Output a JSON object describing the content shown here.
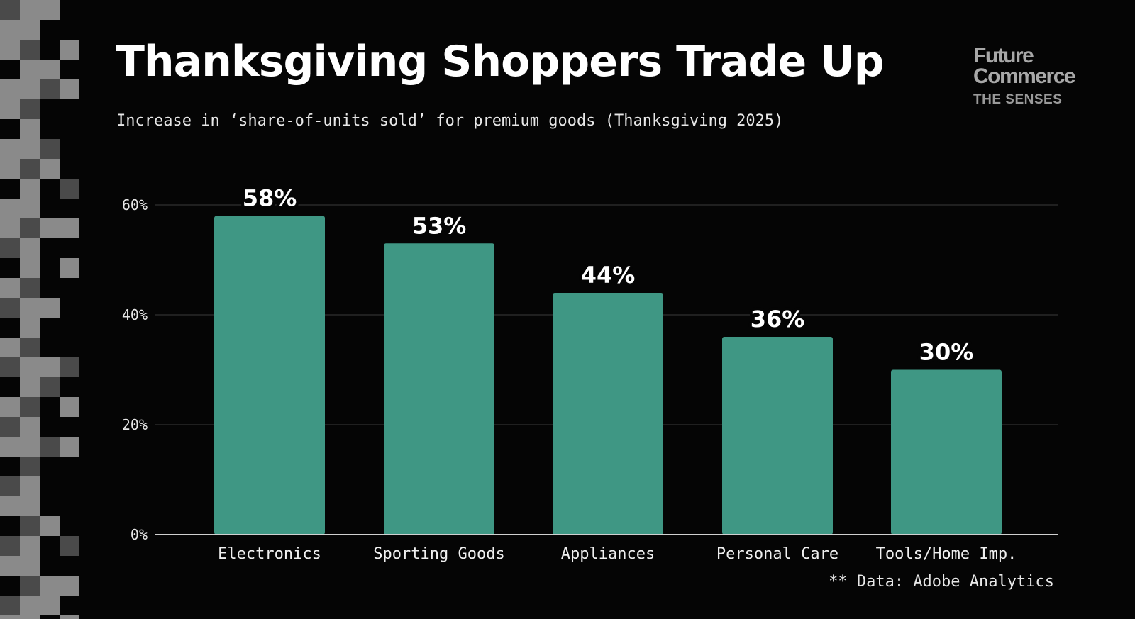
{
  "header": {
    "title": "Thanksgiving Shoppers Trade Up",
    "subtitle": "Increase in ‘share-of-units sold’ for premium goods (Thanksgiving 2025)"
  },
  "brand": {
    "line1": "Future",
    "line2": "Commerce",
    "tagline": "THE SENSES"
  },
  "footer": {
    "source": "** Data: Adobe Analytics"
  },
  "colors": {
    "background": "#050505",
    "bar": "#3f9784",
    "gridline": "#3a3a3a",
    "axis": "#d0d0d0",
    "pixel_light": "#8a8a8a",
    "pixel_dark": "#4a4a4a"
  },
  "chart_data": {
    "type": "bar",
    "title": "Thanksgiving Shoppers Trade Up",
    "subtitle": "Increase in ‘share-of-units sold’ for premium goods (Thanksgiving 2025)",
    "categories": [
      "Electronics",
      "Sporting Goods",
      "Appliances",
      "Personal Care",
      "Tools/Home Imp."
    ],
    "values": [
      58,
      53,
      44,
      36,
      30
    ],
    "value_labels": [
      "58%",
      "53%",
      "44%",
      "36%",
      "30%"
    ],
    "ylim": [
      0,
      60
    ],
    "yticks": [
      0,
      20,
      40,
      60
    ],
    "ytick_labels": [
      "0%",
      "20%",
      "40%",
      "60%"
    ],
    "xlabel": "",
    "ylabel": "",
    "grid": true,
    "legend": "none"
  }
}
